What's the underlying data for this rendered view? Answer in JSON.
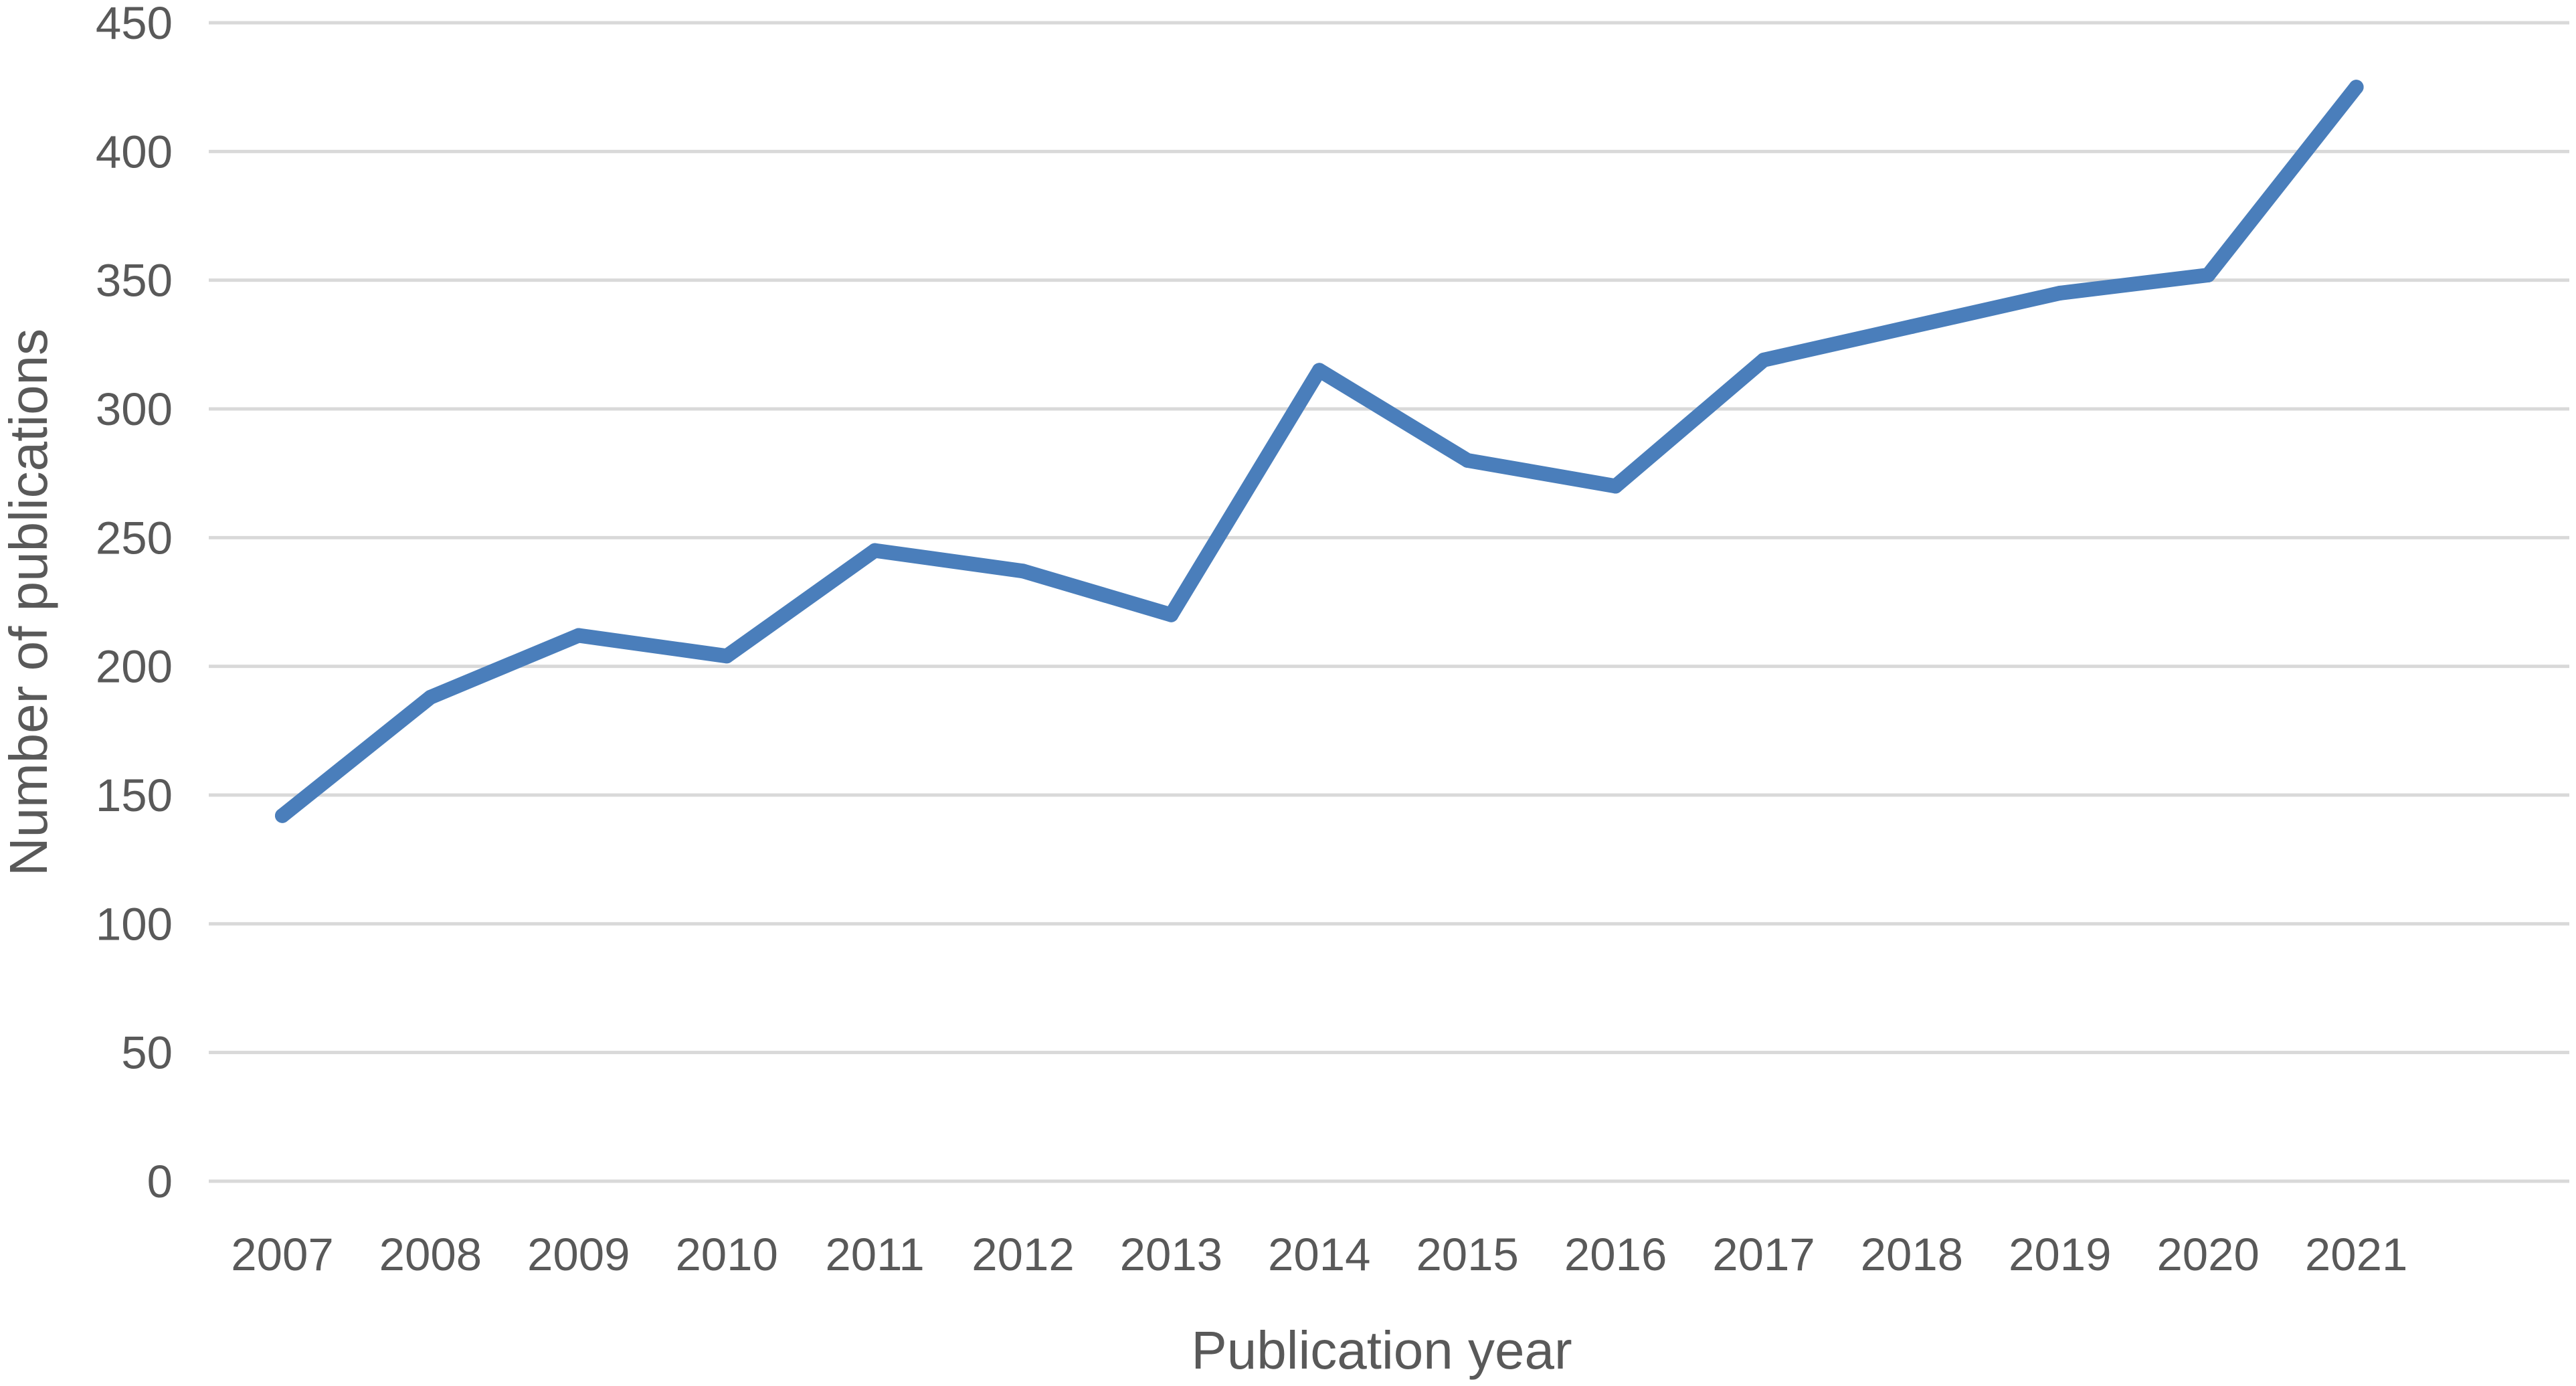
{
  "chart_data": {
    "type": "line",
    "xlabel": "Publication year",
    "ylabel": "Number of publications",
    "categories": [
      "2007",
      "2008",
      "2009",
      "2010",
      "2011",
      "2012",
      "2013",
      "2014",
      "2015",
      "2016",
      "2017",
      "2018",
      "2019",
      "2020",
      "2021"
    ],
    "series": [
      {
        "values": [
          142,
          188,
          212,
          204,
          245,
          237,
          220,
          315,
          280,
          270,
          319,
          332,
          345,
          352,
          425
        ],
        "color": "#4a7ebb"
      }
    ],
    "ylim": [
      0,
      450
    ],
    "yticks": [
      0,
      50,
      100,
      150,
      200,
      250,
      300,
      350,
      400,
      450
    ],
    "grid": true,
    "legend": "none",
    "gridline_color": "#d9d9d9",
    "text_color": "#595959"
  }
}
